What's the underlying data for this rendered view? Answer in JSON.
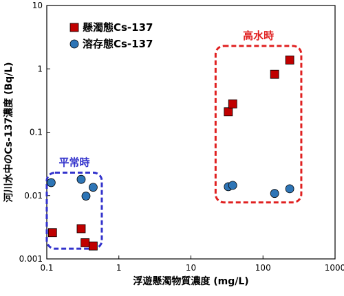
{
  "chart_data": {
    "type": "scatter",
    "xlabel": "浮遊懸濁物質濃度 (mg/L)",
    "ylabel": "河川水中のCs-137濃度 (Bq/L)",
    "x_scale": "log",
    "y_scale": "log",
    "xlim": [
      0.1,
      1000
    ],
    "ylim": [
      0.001,
      10
    ],
    "x_ticks": [
      "0.1",
      "1",
      "10",
      "100",
      "1000"
    ],
    "y_ticks": [
      "0.001",
      "0.01",
      "0.1",
      "1",
      "10"
    ],
    "legend_position": "top-left",
    "series": [
      {
        "name": "懸濁態Cs-137",
        "marker": "square",
        "color": "#C00000",
        "points": [
          {
            "x": 0.12,
            "y": 0.0026
          },
          {
            "x": 0.3,
            "y": 0.003
          },
          {
            "x": 0.34,
            "y": 0.0018
          },
          {
            "x": 0.44,
            "y": 0.0016
          },
          {
            "x": 33,
            "y": 0.21
          },
          {
            "x": 38,
            "y": 0.28
          },
          {
            "x": 145,
            "y": 0.82
          },
          {
            "x": 235,
            "y": 1.38
          }
        ]
      },
      {
        "name": "溶存態Cs-137",
        "marker": "circle",
        "color": "#2E75B6",
        "points": [
          {
            "x": 0.115,
            "y": 0.016
          },
          {
            "x": 0.3,
            "y": 0.018
          },
          {
            "x": 0.35,
            "y": 0.0098
          },
          {
            "x": 0.44,
            "y": 0.0135
          },
          {
            "x": 33,
            "y": 0.0138
          },
          {
            "x": 38,
            "y": 0.0145
          },
          {
            "x": 145,
            "y": 0.0108
          },
          {
            "x": 235,
            "y": 0.0128
          }
        ]
      }
    ],
    "annotations": [
      {
        "label": "平常時",
        "color": "#3333CC",
        "xrange": [
          0.1,
          0.58
        ],
        "yrange": [
          0.00145,
          0.023
        ]
      },
      {
        "label": "高水時",
        "color": "#E02020",
        "xrange": [
          22,
          340
        ],
        "yrange": [
          0.0078,
          2.3
        ]
      }
    ]
  }
}
